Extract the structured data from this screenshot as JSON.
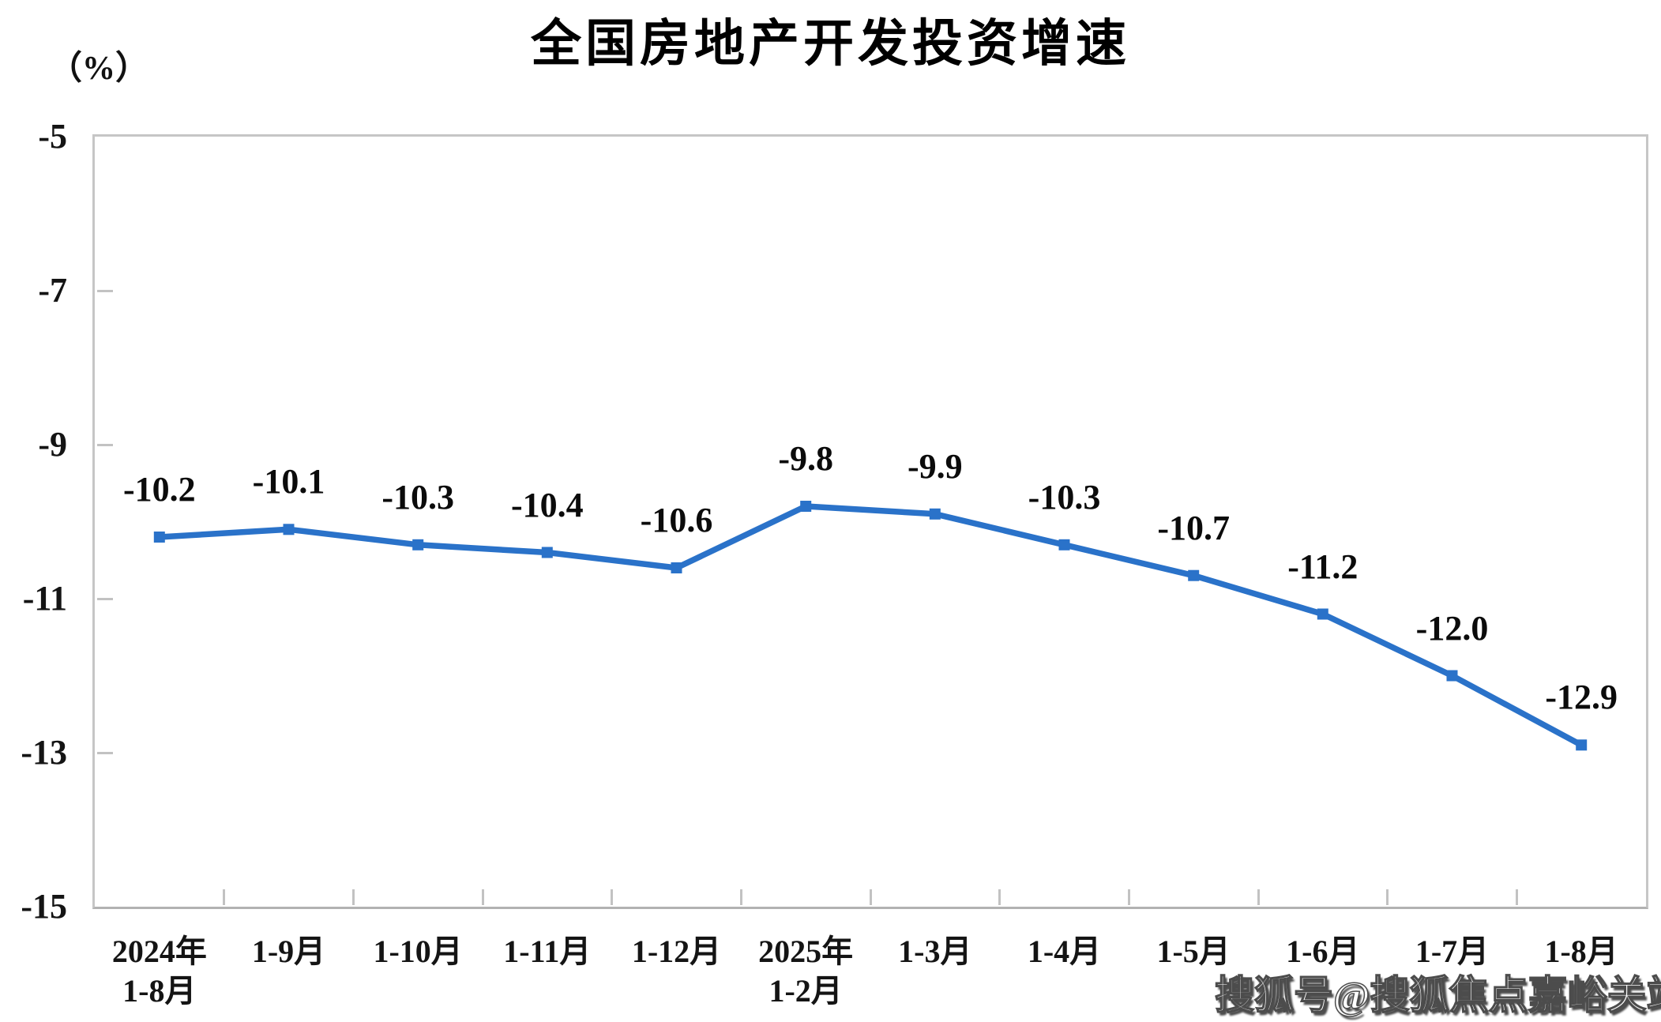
{
  "page": {
    "background": "#ffffff"
  },
  "watermark": {
    "text": "搜狐号@搜狐焦点嘉峪关站"
  },
  "chart_data": {
    "type": "line",
    "title": "全国房地产开发投资增速",
    "unit_label": "（%）",
    "series_name": "全国房地产开发投资增速",
    "categories": [
      [
        "2024年",
        "1-8月"
      ],
      [
        "1-9月"
      ],
      [
        "1-10月"
      ],
      [
        "1-11月"
      ],
      [
        "1-12月"
      ],
      [
        "2025年",
        "1-2月"
      ],
      [
        "1-3月"
      ],
      [
        "1-4月"
      ],
      [
        "1-5月"
      ],
      [
        "1-6月"
      ],
      [
        "1-7月"
      ],
      [
        "1-8月"
      ]
    ],
    "values": [
      -10.2,
      -10.1,
      -10.3,
      -10.4,
      -10.6,
      -9.8,
      -9.9,
      -10.3,
      -10.7,
      -11.2,
      -12.0,
      -12.9
    ],
    "data_labels": [
      "-10.2",
      "-10.1",
      "-10.3",
      "-10.4",
      "-10.6",
      "-9.8",
      "-9.9",
      "-10.3",
      "-10.7",
      "-11.2",
      "-12.0",
      "-12.9"
    ],
    "y_tick_labels": [
      "-5",
      "-7",
      "-9",
      "-11",
      "-13",
      "-15"
    ],
    "y_ticks": [
      -5,
      -7,
      -9,
      -11,
      -13,
      -15
    ],
    "ylim": [
      -15,
      -5
    ],
    "grid": false,
    "legend_position": "none",
    "line_color": "#2A72C9",
    "marker": "square",
    "axis_color": "#c2c2c2",
    "label_color": "#0b0b0b"
  }
}
